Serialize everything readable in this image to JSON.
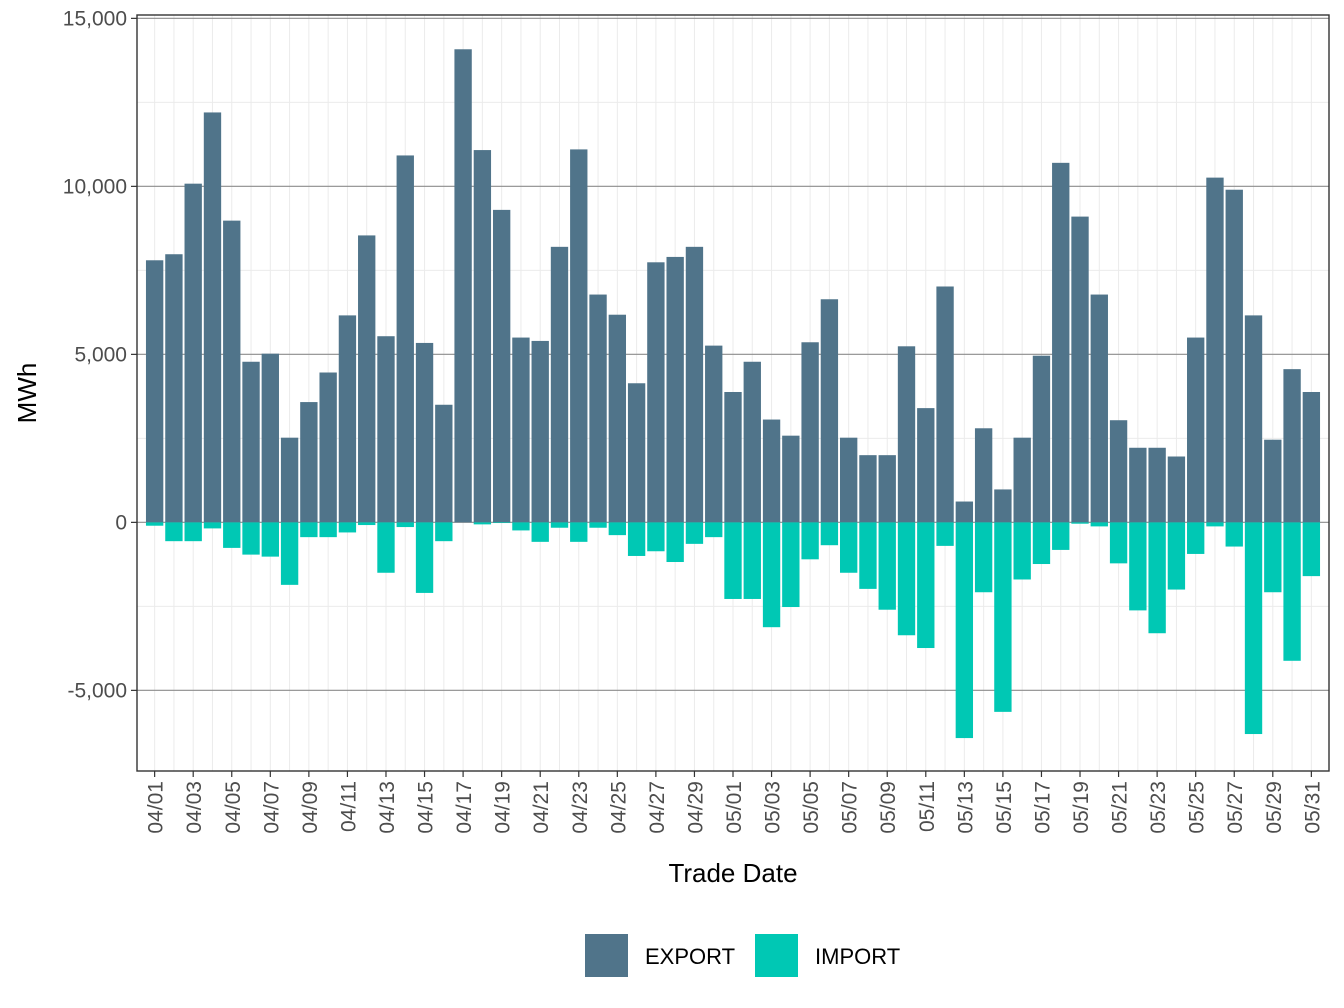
{
  "chart_data": {
    "type": "bar",
    "stacked": true,
    "xlabel": "Trade Date",
    "ylabel": "MWh",
    "ylim": [
      -7400,
      15100
    ],
    "y_ticks": [
      -5000,
      0,
      5000,
      10000,
      15000
    ],
    "y_tick_labels": [
      "-5,000",
      "0",
      "5,000",
      "10,000",
      "15,000"
    ],
    "grid": true,
    "legend_position": "bottom",
    "categories": [
      "04/01",
      "04/02",
      "04/03",
      "04/04",
      "04/05",
      "04/06",
      "04/07",
      "04/08",
      "04/09",
      "04/10",
      "04/11",
      "04/12",
      "04/13",
      "04/14",
      "04/15",
      "04/16",
      "04/17",
      "04/18",
      "04/19",
      "04/20",
      "04/21",
      "04/22",
      "04/23",
      "04/24",
      "04/25",
      "04/26",
      "04/27",
      "04/28",
      "04/29",
      "04/30",
      "05/01",
      "05/02",
      "05/03",
      "05/04",
      "05/05",
      "05/06",
      "05/07",
      "05/08",
      "05/09",
      "05/10",
      "05/11",
      "05/12",
      "05/13",
      "05/14",
      "05/15",
      "05/16",
      "05/17",
      "05/18",
      "05/19",
      "05/20",
      "05/21",
      "05/22",
      "05/23",
      "05/24",
      "05/25",
      "05/26",
      "05/27",
      "05/28",
      "05/29",
      "05/30",
      "05/31"
    ],
    "x_tick_labels": [
      "04/01",
      "04/03",
      "04/05",
      "04/07",
      "04/09",
      "04/11",
      "04/13",
      "04/15",
      "04/17",
      "04/19",
      "04/21",
      "04/23",
      "04/25",
      "04/27",
      "04/29",
      "05/01",
      "05/03",
      "05/05",
      "05/07",
      "05/09",
      "05/11",
      "05/13",
      "05/15",
      "05/17",
      "05/19",
      "05/21",
      "05/23",
      "05/25",
      "05/27",
      "05/29",
      "05/31"
    ],
    "series": [
      {
        "name": "EXPORT",
        "color": "#50748a",
        "values": [
          7800,
          7980,
          10080,
          12200,
          8980,
          4780,
          5020,
          2520,
          3580,
          4460,
          6160,
          8540,
          5540,
          10920,
          5340,
          3500,
          14080,
          11080,
          9300,
          5500,
          5400,
          8200,
          11100,
          6780,
          6180,
          4140,
          7740,
          7900,
          8200,
          5260,
          3880,
          4780,
          3060,
          2580,
          5360,
          6640,
          2520,
          2000,
          2000,
          5240,
          3400,
          7020,
          620,
          2800,
          980,
          2520,
          4960,
          10700,
          9100,
          6780,
          3040,
          2220,
          2220,
          1960,
          5500,
          10260,
          9900,
          6160,
          2460,
          4560,
          3880
        ]
      },
      {
        "name": "IMPORT",
        "color": "#00c8b4",
        "values": [
          -100,
          -560,
          -560,
          -180,
          -760,
          -960,
          -1020,
          -1860,
          -440,
          -440,
          -300,
          -80,
          -1500,
          -140,
          -2100,
          -560,
          0,
          -60,
          -20,
          -240,
          -580,
          -160,
          -580,
          -160,
          -380,
          -1000,
          -860,
          -1180,
          -640,
          -440,
          -2280,
          -2280,
          -3120,
          -2520,
          -1100,
          -680,
          -1500,
          -1980,
          -2600,
          -3360,
          -3740,
          -700,
          -6420,
          -2080,
          -5640,
          -1700,
          -1240,
          -820,
          -40,
          -120,
          -1220,
          -2620,
          -3300,
          -2000,
          -940,
          -120,
          -720,
          -6300,
          -2080,
          -4120,
          -1600
        ]
      }
    ]
  }
}
